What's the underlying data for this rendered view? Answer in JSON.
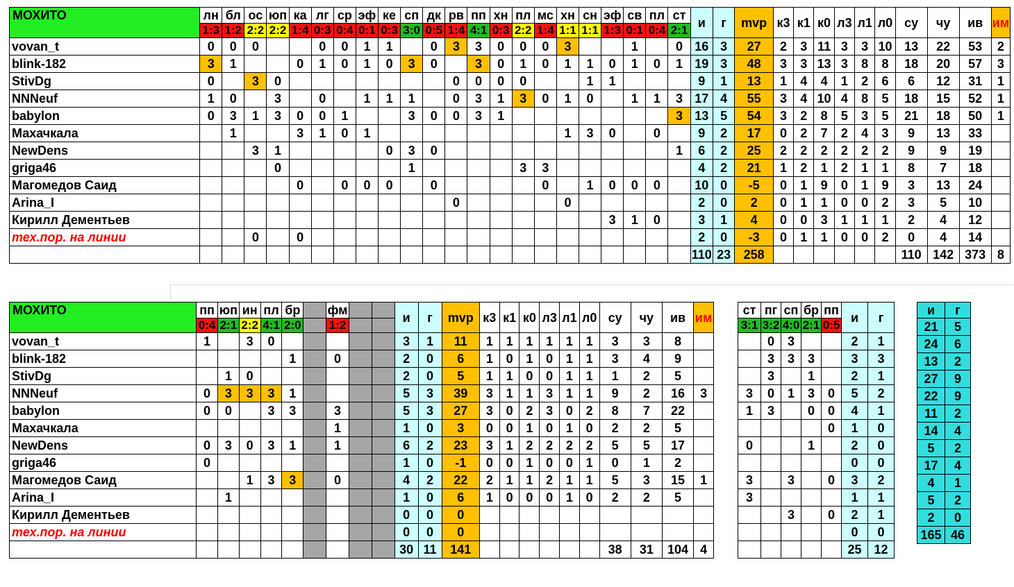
{
  "team": "МОХИТО",
  "tech_label": "тех.пор. на линии",
  "colors": {
    "win": "#22bb22",
    "loss": "#ff1111",
    "draw": "#ffff00",
    "mvp": "#ffc000",
    "games": "#ccffff",
    "totals": "#33dddd",
    "blank": "#a6a6a6"
  },
  "t1": {
    "matches": [
      [
        "лн",
        "1:3",
        "rd"
      ],
      [
        "бл",
        "1:2",
        "rd"
      ],
      [
        "ос",
        "2:2",
        "yl"
      ],
      [
        "юп",
        "2:2",
        "yl"
      ],
      [
        "ка",
        "1:4",
        "rd"
      ],
      [
        "лг",
        "0:3",
        "rd"
      ],
      [
        "ср",
        "0:4",
        "rd"
      ],
      [
        "эф",
        "0:1",
        "rd"
      ],
      [
        "ке",
        "0:3",
        "rd"
      ],
      [
        "сп",
        "3:0",
        "gr"
      ],
      [
        "дк",
        "0:5",
        "rd"
      ],
      [
        "рв",
        "1:4",
        "rd"
      ],
      [
        "пп",
        "4:1",
        "gr"
      ],
      [
        "хн",
        "0:3",
        "rd"
      ],
      [
        "пл",
        "2:2",
        "yl"
      ],
      [
        "мс",
        "1:4",
        "rd"
      ],
      [
        "хн",
        "1:1",
        "yl"
      ],
      [
        "сн",
        "1:1",
        "yl"
      ],
      [
        "эф",
        "1:3",
        "rd"
      ],
      [
        "св",
        "0:1",
        "rd"
      ],
      [
        "пл",
        "0:4",
        "rd"
      ],
      [
        "ст",
        "2:1",
        "gr"
      ]
    ],
    "stat_headers": [
      "и",
      "г",
      "mvp",
      "к3",
      "к1",
      "к0",
      "л3",
      "л1",
      "л0",
      "су",
      "чу",
      "ив",
      "им"
    ],
    "rows": [
      [
        "vovan_t",
        [
          "0",
          "0",
          "0",
          "",
          "",
          "0",
          "0",
          "1",
          "1",
          "",
          "0",
          "3*",
          "3",
          "0",
          "0",
          "0",
          "3*",
          "",
          "",
          "1",
          "",
          "0"
        ],
        [
          "16",
          "3",
          "27",
          "2",
          "3",
          "11",
          "3",
          "3",
          "10",
          "13",
          "22",
          "53",
          "2"
        ]
      ],
      [
        "blink-182",
        [
          "3*",
          "1",
          "",
          "",
          "0",
          "1",
          "0",
          "1",
          "0",
          "3*",
          "0",
          "",
          "3*",
          "0",
          "1",
          "0",
          "1",
          "1",
          "0",
          "1",
          "0",
          "1"
        ],
        [
          "19",
          "3",
          "48",
          "3",
          "3",
          "13",
          "3",
          "8",
          "8",
          "18",
          "20",
          "57",
          "3"
        ]
      ],
      [
        "StivDg",
        [
          "0",
          "",
          "3*",
          "0",
          "",
          "",
          "",
          "",
          "",
          "",
          "",
          "0",
          "0",
          "0",
          "0",
          "",
          "",
          "1",
          "1",
          "",
          "",
          ""
        ],
        [
          "9",
          "1",
          "13",
          "1",
          "4",
          "4",
          "1",
          "2",
          "6",
          "6",
          "12",
          "31",
          "1"
        ]
      ],
      [
        "NNNeuf",
        [
          "1",
          "0",
          "",
          "3",
          "",
          "0",
          "",
          "1",
          "1",
          "1",
          "",
          "0",
          "3",
          "1",
          "3*",
          "0",
          "1",
          "0",
          "",
          "1",
          "1",
          "3"
        ],
        [
          "17",
          "4",
          "55",
          "3",
          "4",
          "10",
          "4",
          "8",
          "5",
          "18",
          "15",
          "52",
          "1"
        ]
      ],
      [
        "babylon",
        [
          "0",
          "3",
          "1",
          "3",
          "0",
          "0",
          "1",
          "",
          "",
          "3",
          "0",
          "0",
          "3",
          "1",
          "",
          "",
          "",
          "",
          "",
          "",
          "",
          "3*"
        ],
        [
          "13",
          "5",
          "54",
          "3",
          "2",
          "8",
          "5",
          "3",
          "5",
          "21",
          "18",
          "50",
          "1"
        ]
      ],
      [
        "Махачкала",
        [
          "",
          "1",
          "",
          "",
          "3",
          "1",
          "0",
          "1",
          "",
          "",
          "",
          "",
          "",
          "",
          "",
          "",
          "1",
          "3",
          "0",
          "",
          "0",
          ""
        ],
        [
          "9",
          "2",
          "17",
          "0",
          "2",
          "7",
          "2",
          "4",
          "3",
          "9",
          "13",
          "33",
          ""
        ]
      ],
      [
        "NewDens",
        [
          "",
          "",
          "3",
          "1",
          "",
          "",
          "",
          "",
          "0",
          "3",
          "0",
          "",
          "",
          "",
          "",
          "",
          "",
          "",
          "",
          "",
          "",
          "1"
        ],
        [
          "6",
          "2",
          "25",
          "2",
          "2",
          "2",
          "2",
          "2",
          "2",
          "9",
          "9",
          "19",
          ""
        ]
      ],
      [
        "griga46",
        [
          "",
          "",
          "",
          "0",
          "",
          "",
          "",
          "",
          "",
          "1",
          "",
          "",
          "",
          "",
          "3",
          "3",
          "",
          "",
          "",
          "",
          "",
          ""
        ],
        [
          "4",
          "2",
          "21",
          "1",
          "2",
          "1",
          "2",
          "1",
          "1",
          "8",
          "7",
          "18",
          ""
        ]
      ],
      [
        "Магомедов Саид",
        [
          "",
          "",
          "",
          "",
          "0",
          "",
          "0",
          "0",
          "0",
          "",
          "0",
          "",
          "",
          "",
          "",
          "0",
          "",
          "1",
          "0",
          "0",
          "0",
          ""
        ],
        [
          "10",
          "0",
          "-5",
          "0",
          "1",
          "9",
          "0",
          "1",
          "9",
          "3",
          "13",
          "24",
          ""
        ]
      ],
      [
        "Arina_I",
        [
          "",
          "",
          "",
          "",
          "",
          "",
          "",
          "",
          "",
          "",
          "",
          "0",
          "",
          "",
          "",
          "",
          "0",
          "",
          "",
          "",
          "",
          ""
        ],
        [
          "2",
          "0",
          "2",
          "0",
          "1",
          "1",
          "0",
          "0",
          "2",
          "3",
          "5",
          "10",
          ""
        ]
      ],
      [
        "Кирилл Дементьев",
        [
          "",
          "",
          "",
          "",
          "",
          "",
          "",
          "",
          "",
          "",
          "",
          "",
          "",
          "",
          "",
          "",
          "",
          "",
          "3",
          "1",
          "0",
          ""
        ],
        [
          "3",
          "1",
          "4",
          "0",
          "0",
          "3",
          "1",
          "1",
          "1",
          "2",
          "4",
          "12",
          ""
        ]
      ],
      [
        "тех.пор. на линии",
        [
          "",
          "",
          "0",
          "",
          "0",
          "",
          "",
          "",
          "",
          "",
          "",
          "",
          "",
          "",
          "",
          "",
          "",
          "",
          "",
          "",
          "",
          ""
        ],
        [
          "2",
          "0",
          "-3",
          "0",
          "1",
          "1",
          "0",
          "0",
          "2",
          "0",
          "4",
          "14",
          ""
        ]
      ]
    ],
    "totals": [
      "110",
      "23",
      "258",
      "",
      "",
      "",
      "",
      "",
      "",
      "110",
      "142",
      "373",
      "8"
    ]
  },
  "t2": {
    "matches": [
      [
        "пп",
        "0:4",
        "rd"
      ],
      [
        "юп",
        "2:1",
        "gr"
      ],
      [
        "ин",
        "2:2",
        "yl"
      ],
      [
        "пл",
        "4:1",
        "gr"
      ],
      [
        "бр",
        "2:0",
        "gr"
      ],
      [
        "",
        "",
        "gy"
      ],
      [
        "фм",
        "1:2",
        "rd"
      ],
      [
        "",
        "",
        "gy"
      ],
      [
        "",
        "",
        "gy"
      ]
    ],
    "stat_headers": [
      "и",
      "г",
      "mvp",
      "к3",
      "к1",
      "к0",
      "л3",
      "л1",
      "л0",
      "су",
      "чу",
      "ив",
      "им"
    ],
    "rows": [
      [
        "vovan_t",
        [
          "1",
          "",
          "3",
          "0",
          "",
          "",
          "",
          "",
          ""
        ],
        [
          "3",
          "1",
          "11",
          "1",
          "1",
          "1",
          "1",
          "1",
          "1",
          "3",
          "3",
          "8",
          ""
        ]
      ],
      [
        "blink-182",
        [
          "",
          "",
          "",
          "",
          "1",
          "",
          "0",
          "",
          ""
        ],
        [
          "2",
          "0",
          "6",
          "1",
          "0",
          "1",
          "0",
          "1",
          "1",
          "3",
          "4",
          "9",
          ""
        ]
      ],
      [
        "StivDg",
        [
          "",
          "1",
          "0",
          "",
          "",
          "",
          "",
          "",
          ""
        ],
        [
          "2",
          "0",
          "5",
          "1",
          "1",
          "0",
          "0",
          "1",
          "1",
          "1",
          "2",
          "5",
          ""
        ]
      ],
      [
        "NNNeuf",
        [
          "0",
          "3*",
          "3*",
          "3*",
          "1",
          "",
          "",
          "",
          ""
        ],
        [
          "5",
          "3",
          "39",
          "3",
          "1",
          "1",
          "3",
          "1",
          "1",
          "9",
          "2",
          "16",
          "3"
        ]
      ],
      [
        "babylon",
        [
          "0",
          "0",
          "",
          "3",
          "3",
          "",
          "3",
          "",
          ""
        ],
        [
          "5",
          "3",
          "27",
          "3",
          "0",
          "2",
          "3",
          "0",
          "2",
          "8",
          "7",
          "22",
          ""
        ]
      ],
      [
        "Махачкала",
        [
          "",
          "",
          "",
          "",
          "",
          "",
          "1",
          "",
          ""
        ],
        [
          "1",
          "0",
          "3",
          "0",
          "0",
          "1",
          "0",
          "1",
          "0",
          "2",
          "2",
          "5",
          ""
        ]
      ],
      [
        "NewDens",
        [
          "0",
          "3",
          "0",
          "3",
          "1",
          "",
          "1",
          "",
          ""
        ],
        [
          "6",
          "2",
          "23",
          "3",
          "1",
          "2",
          "2",
          "2",
          "2",
          "5",
          "5",
          "17",
          ""
        ]
      ],
      [
        "griga46",
        [
          "0",
          "",
          "",
          "",
          "",
          "",
          "",
          "",
          ""
        ],
        [
          "1",
          "0",
          "-1",
          "0",
          "0",
          "1",
          "0",
          "0",
          "1",
          "0",
          "1",
          "2",
          ""
        ]
      ],
      [
        "Магомедов Саид",
        [
          "",
          "",
          "1",
          "3",
          "3*",
          "",
          "0",
          "",
          ""
        ],
        [
          "4",
          "2",
          "22",
          "2",
          "1",
          "1",
          "2",
          "1",
          "1",
          "5",
          "3",
          "15",
          "1"
        ]
      ],
      [
        "Arina_I",
        [
          "",
          "1",
          "",
          "",
          "",
          "",
          "",
          "",
          ""
        ],
        [
          "1",
          "0",
          "6",
          "1",
          "0",
          "0",
          "0",
          "1",
          "0",
          "2",
          "2",
          "5",
          ""
        ]
      ],
      [
        "Кирилл Дементьев",
        [
          "",
          "",
          "",
          "",
          "",
          "",
          "",
          "",
          ""
        ],
        [
          "0",
          "0",
          "0",
          "",
          "",
          "",
          "",
          "",
          "",
          "",
          "",
          "",
          ""
        ]
      ],
      [
        "тех.пор. на линии",
        [
          "",
          "",
          "",
          "",
          "",
          "",
          "",
          "",
          ""
        ],
        [
          "0",
          "0",
          "0",
          "",
          "",
          "",
          "",
          "",
          "",
          "",
          "",
          "",
          ""
        ]
      ]
    ],
    "totals": [
      "30",
      "11",
      "141",
      "",
      "",
      "",
      "",
      "",
      "",
      "38",
      "31",
      "104",
      "4"
    ]
  },
  "t3": {
    "matches": [
      [
        "ст",
        "3:1",
        "gr"
      ],
      [
        "пг",
        "3:2",
        "gr"
      ],
      [
        "сп",
        "4:0",
        "gr"
      ],
      [
        "бр",
        "2:1",
        "gr"
      ],
      [
        "пп",
        "0:5",
        "rd"
      ]
    ],
    "stat_headers": [
      "и",
      "г"
    ],
    "rows": [
      [
        [
          "",
          "0",
          "3",
          "",
          ""
        ],
        [
          "2",
          "1"
        ]
      ],
      [
        [
          "",
          "3",
          "3",
          "3",
          ""
        ],
        [
          "3",
          "3"
        ]
      ],
      [
        [
          "",
          "3",
          "",
          "1",
          ""
        ],
        [
          "2",
          "1"
        ]
      ],
      [
        [
          "3",
          "0",
          "1",
          "3",
          "0"
        ],
        [
          "5",
          "2"
        ]
      ],
      [
        [
          "1",
          "3",
          "",
          "0",
          "0"
        ],
        [
          "4",
          "1"
        ]
      ],
      [
        [
          "",
          "",
          "",
          "",
          "0"
        ],
        [
          "1",
          "0"
        ]
      ],
      [
        [
          "0",
          "",
          "",
          "1",
          ""
        ],
        [
          "2",
          "0"
        ]
      ],
      [
        [
          "",
          "",
          "",
          "",
          ""
        ],
        [
          "0",
          "0"
        ]
      ],
      [
        [
          "3",
          "",
          "3",
          "",
          "0"
        ],
        [
          "3",
          "2"
        ]
      ],
      [
        [
          "3",
          "",
          "",
          "",
          ""
        ],
        [
          "1",
          "1"
        ]
      ],
      [
        [
          "",
          "",
          "3",
          "",
          "0"
        ],
        [
          "2",
          "1"
        ]
      ],
      [
        [
          "",
          "",
          "",
          "",
          ""
        ],
        [
          "0",
          "0"
        ]
      ]
    ],
    "totals": [
      "25",
      "12"
    ]
  },
  "t4": {
    "headers": [
      "и",
      "г"
    ],
    "rows": [
      [
        "21",
        "5"
      ],
      [
        "24",
        "6"
      ],
      [
        "13",
        "2"
      ],
      [
        "27",
        "9"
      ],
      [
        "22",
        "9"
      ],
      [
        "11",
        "2"
      ],
      [
        "14",
        "4"
      ],
      [
        "5",
        "2"
      ],
      [
        "17",
        "4"
      ],
      [
        "4",
        "1"
      ],
      [
        "5",
        "2"
      ],
      [
        "2",
        "0"
      ]
    ],
    "totals": [
      "165",
      "46"
    ]
  }
}
